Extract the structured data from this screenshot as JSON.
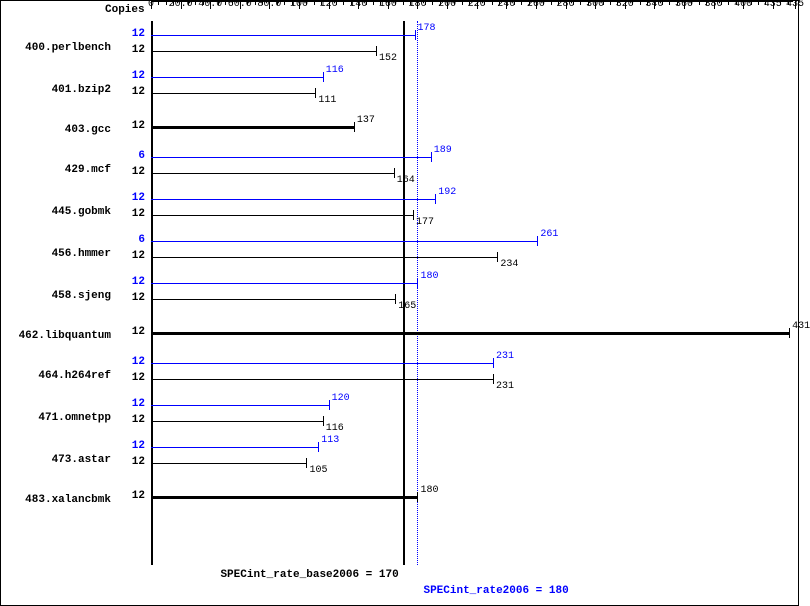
{
  "chart": {
    "type": "bar",
    "copies_header": "Copies",
    "xaxis": {
      "min": 0,
      "max": 435,
      "major_step": 20,
      "minor_per_major": 4,
      "labels": [
        "0",
        "20.0",
        "40.0",
        "60.0",
        "80.0",
        "100",
        "120",
        "140",
        "160",
        "180",
        "200",
        "220",
        "240",
        "260",
        "280",
        "300",
        "320",
        "340",
        "360",
        "380",
        "400",
        "435"
      ]
    },
    "colors": {
      "peak": "#0000ff",
      "base": "#000000",
      "background": "#ffffff"
    },
    "base_ref": {
      "value": 170,
      "label": "SPECint_rate_base2006 = 170"
    },
    "peak_ref": {
      "value": 180,
      "label": "SPECint_rate2006 = 180"
    },
    "benchmarks": [
      {
        "name": "400.perlbench",
        "peak": {
          "copies": 12,
          "value": 178
        },
        "base": {
          "copies": 12,
          "value": 152
        }
      },
      {
        "name": "401.bzip2",
        "peak": {
          "copies": 12,
          "value": 116
        },
        "base": {
          "copies": 12,
          "value": 111
        }
      },
      {
        "name": "403.gcc",
        "base": {
          "copies": 12,
          "value": 137,
          "thick": true
        }
      },
      {
        "name": "429.mcf",
        "peak": {
          "copies": 6,
          "value": 189
        },
        "base": {
          "copies": 12,
          "value": 164
        }
      },
      {
        "name": "445.gobmk",
        "peak": {
          "copies": 12,
          "value": 192
        },
        "base": {
          "copies": 12,
          "value": 177
        }
      },
      {
        "name": "456.hmmer",
        "peak": {
          "copies": 6,
          "value": 261
        },
        "base": {
          "copies": 12,
          "value": 234
        }
      },
      {
        "name": "458.sjeng",
        "peak": {
          "copies": 12,
          "value": 180
        },
        "base": {
          "copies": 12,
          "value": 165
        }
      },
      {
        "name": "462.libquantum",
        "base": {
          "copies": 12,
          "value": 431,
          "thick": true
        }
      },
      {
        "name": "464.h264ref",
        "peak": {
          "copies": 12,
          "value": 231
        },
        "base": {
          "copies": 12,
          "value": 231
        }
      },
      {
        "name": "471.omnetpp",
        "peak": {
          "copies": 12,
          "value": 120
        },
        "base": {
          "copies": 12,
          "value": 116
        }
      },
      {
        "name": "473.astar",
        "peak": {
          "copies": 12,
          "value": 113
        },
        "base": {
          "copies": 12,
          "value": 105
        }
      },
      {
        "name": "483.xalancbmk",
        "base": {
          "copies": 12,
          "value": 180,
          "thick": true
        }
      }
    ],
    "font_family": "Courier New",
    "font_size_label": 11,
    "font_size_value": 10
  }
}
